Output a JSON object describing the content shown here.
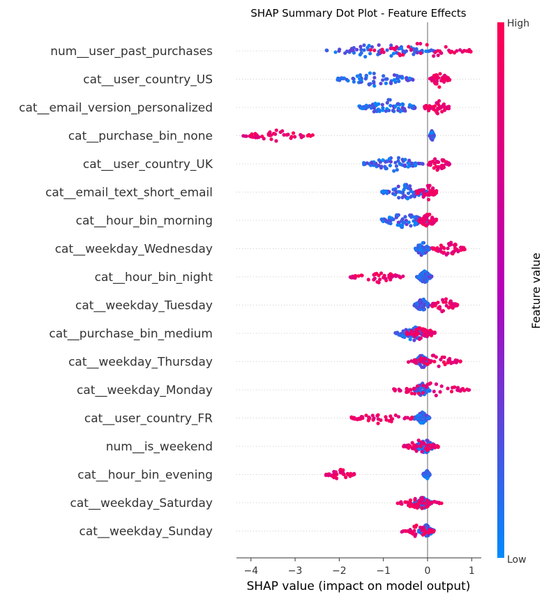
{
  "chart_data": {
    "type": "scatter",
    "subtype": "shap-beeswarm",
    "title": "SHAP Summary Dot Plot - Feature Effects",
    "xlabel": "SHAP value (impact on model output)",
    "ylabel": "",
    "xlim": [
      -4.4,
      1.25
    ],
    "xticks": [
      -4,
      -3,
      -2,
      -1,
      0,
      1
    ],
    "xtick_labels": [
      "−4",
      "−3",
      "−2",
      "−1",
      "0",
      "1"
    ],
    "grid": false,
    "colorbar": {
      "label": "Feature value",
      "high_label": "High",
      "low_label": "Low",
      "high_color": "#ff0052",
      "mid_color": "#b600b9",
      "low_color": "#008bfb"
    },
    "features": [
      {
        "name": "num__user_past_purchases",
        "low_range": [
          -2.3,
          0.2
        ],
        "high_range": [
          -1.3,
          1.0
        ],
        "spread": 0.45
      },
      {
        "name": "cat__user_country_US",
        "low_range": [
          -2.05,
          -0.3
        ],
        "high_range": [
          0.05,
          0.5
        ],
        "spread": 0.45
      },
      {
        "name": "cat__email_version_personalized",
        "low_range": [
          -1.55,
          -0.2
        ],
        "high_range": [
          -0.1,
          0.5
        ],
        "spread": 0.45
      },
      {
        "name": "cat__purchase_bin_none",
        "low_range": [
          0.05,
          0.15
        ],
        "high_range": [
          -4.2,
          -2.6
        ],
        "spread": 0.3
      },
      {
        "name": "cat__user_country_UK",
        "low_range": [
          -1.45,
          -0.1
        ],
        "high_range": [
          0.0,
          0.5
        ],
        "spread": 0.4
      },
      {
        "name": "cat__email_text_short_email",
        "low_range": [
          -1.05,
          0.0
        ],
        "high_range": [
          -0.25,
          0.25
        ],
        "spread": 0.45
      },
      {
        "name": "cat__hour_bin_morning",
        "low_range": [
          -1.05,
          0.0
        ],
        "high_range": [
          -0.2,
          0.2
        ],
        "spread": 0.45
      },
      {
        "name": "cat__weekday_Wednesday",
        "low_range": [
          -0.3,
          0.05
        ],
        "high_range": [
          0.1,
          0.85
        ],
        "spread": 0.4
      },
      {
        "name": "cat__hour_bin_night",
        "low_range": [
          -0.25,
          0.1
        ],
        "high_range": [
          -1.75,
          -0.55
        ],
        "spread": 0.35
      },
      {
        "name": "cat__weekday_Tuesday",
        "low_range": [
          -0.3,
          0.05
        ],
        "high_range": [
          0.05,
          0.7
        ],
        "spread": 0.4
      },
      {
        "name": "cat__purchase_bin_medium",
        "low_range": [
          -0.75,
          0.1
        ],
        "high_range": [
          -0.5,
          0.2
        ],
        "spread": 0.4
      },
      {
        "name": "cat__weekday_Thursday",
        "low_range": [
          -0.3,
          0.05
        ],
        "high_range": [
          -0.45,
          0.75
        ],
        "spread": 0.4
      },
      {
        "name": "cat__weekday_Monday",
        "low_range": [
          -0.3,
          0.05
        ],
        "high_range": [
          -0.8,
          1.0
        ],
        "spread": 0.4
      },
      {
        "name": "cat__user_country_FR",
        "low_range": [
          -0.3,
          0.05
        ],
        "high_range": [
          -1.75,
          -0.35
        ],
        "spread": 0.35
      },
      {
        "name": "num__is_weekend",
        "low_range": [
          -0.3,
          0.2
        ],
        "high_range": [
          -0.55,
          0.25
        ],
        "spread": 0.4
      },
      {
        "name": "cat__hour_bin_evening",
        "low_range": [
          -0.1,
          0.05
        ],
        "high_range": [
          -2.3,
          -1.65
        ],
        "spread": 0.3
      },
      {
        "name": "cat__weekday_Saturday",
        "low_range": [
          -0.3,
          0.1
        ],
        "high_range": [
          -0.7,
          0.35
        ],
        "spread": 0.35
      },
      {
        "name": "cat__weekday_Sunday",
        "low_range": [
          -0.2,
          0.15
        ],
        "high_range": [
          -0.6,
          0.15
        ],
        "spread": 0.35
      }
    ]
  }
}
